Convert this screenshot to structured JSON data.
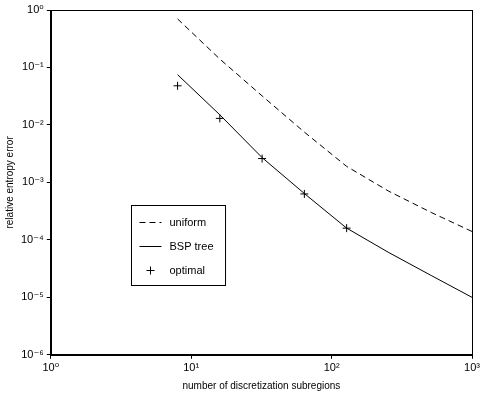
{
  "chart_data": {
    "type": "line",
    "log": true,
    "grid": false,
    "legend": "lower left",
    "x_label": "number of discretization subregions",
    "y_label": "relative entropy error",
    "xlim": [
      1,
      1000
    ],
    "ylim": [
      1e-06,
      1
    ],
    "xticks": [
      {
        "value": 1,
        "label": "10⁰"
      },
      {
        "value": 10,
        "label": "10¹"
      },
      {
        "value": 100,
        "label": "10²"
      },
      {
        "value": 1000,
        "label": "10³"
      }
    ],
    "yticks": [
      {
        "value": 1e-06,
        "label": "10⁻⁶"
      },
      {
        "value": 1e-05,
        "label": "10⁻⁵"
      },
      {
        "value": 0.0001,
        "label": "10⁻⁴"
      },
      {
        "value": 0.001,
        "label": "10⁻³"
      },
      {
        "value": 0.01,
        "label": "10⁻²"
      },
      {
        "value": 0.1,
        "label": "10⁻¹"
      },
      {
        "value": 1,
        "label": "10⁰"
      }
    ],
    "series": [
      {
        "name": "uniform",
        "color": "#000000",
        "line_style": "dashed",
        "marker": "none",
        "x": [
          8,
          16,
          32,
          64,
          128,
          256,
          512,
          1000
        ],
        "values": [
          0.7,
          0.14,
          0.032,
          0.0075,
          0.0019,
          0.0007,
          0.0003,
          0.00014
        ]
      },
      {
        "name": "BSP tree",
        "color": "#000000",
        "line_style": "solid",
        "marker": "none",
        "x": [
          8,
          16,
          32,
          64,
          128,
          256,
          512,
          1000
        ],
        "values": [
          0.075,
          0.015,
          0.0027,
          0.00064,
          0.00016,
          6e-05,
          2.4e-05,
          1e-05
        ]
      },
      {
        "name": "optimal",
        "color": "#000000",
        "line_style": "none",
        "marker": "plus",
        "x": [
          8,
          16,
          32,
          64,
          128
        ],
        "values": [
          0.048,
          0.013,
          0.0026,
          0.00063,
          0.00016
        ]
      }
    ]
  }
}
